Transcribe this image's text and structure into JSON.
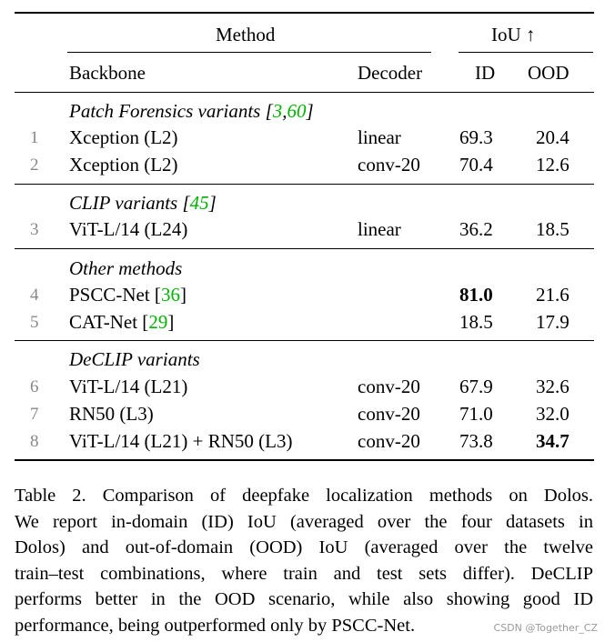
{
  "table": {
    "header": {
      "method": "Method",
      "iou": "IoU ↑",
      "backbone": "Backbone",
      "decoder": "Decoder",
      "id": "ID",
      "ood": "OOD"
    },
    "groups": [
      {
        "title_text": "Patch Forensics variants [",
        "title_refs": [
          "3",
          "60"
        ],
        "rows": [
          {
            "num": "1",
            "backbone": "Xception (L2)",
            "decoder": "linear",
            "id": "69.3",
            "ood": "20.4"
          },
          {
            "num": "2",
            "backbone": "Xception (L2)",
            "decoder": "conv-20",
            "id": "70.4",
            "ood": "12.6"
          }
        ]
      },
      {
        "title_text": "CLIP variants [",
        "title_refs": [
          "45"
        ],
        "rows": [
          {
            "num": "3",
            "backbone": "ViT-L/14 (L24)",
            "decoder": "linear",
            "id": "36.2",
            "ood": "18.5"
          }
        ]
      },
      {
        "title_text": "Other methods",
        "rows": [
          {
            "num": "4",
            "backbone": "PSCC-Net [",
            "ref": "36",
            "decoder": "",
            "id": "81.0",
            "ood": "21.6",
            "id_bold": true
          },
          {
            "num": "5",
            "backbone": "CAT-Net [",
            "ref": "29",
            "decoder": "",
            "id": "18.5",
            "ood": "17.9"
          }
        ]
      },
      {
        "title_text": "DeCLIP variants",
        "rows": [
          {
            "num": "6",
            "backbone": "ViT-L/14 (L21)",
            "decoder": "conv-20",
            "id": "67.9",
            "ood": "32.6"
          },
          {
            "num": "7",
            "backbone": "RN50 (L3)",
            "decoder": "conv-20",
            "id": "71.0",
            "ood": "32.0"
          },
          {
            "num": "8",
            "backbone": "ViT-L/14 (L21) + RN50 (L3)",
            "decoder": "conv-20",
            "id": "73.8",
            "ood": "34.7",
            "ood_bold": true
          }
        ]
      }
    ]
  },
  "caption": {
    "lines": [
      "Table 2.  Comparison of deepfake localization methods on Dolos.",
      "We report in-domain (ID) IoU (averaged over the four datasets in",
      "Dolos) and out-of-domain (OOD) IoU (averaged over the twelve",
      "train–test combinations, where train and test sets differ). DeCLIP",
      "performs better in the OOD scenario, while also showing good ID",
      "performance, being outperformed only by PSCC-Net."
    ]
  },
  "watermark": "CSDN @Together_CZ",
  "colors": {
    "ref": "#00b300",
    "row_number": "#888888"
  }
}
